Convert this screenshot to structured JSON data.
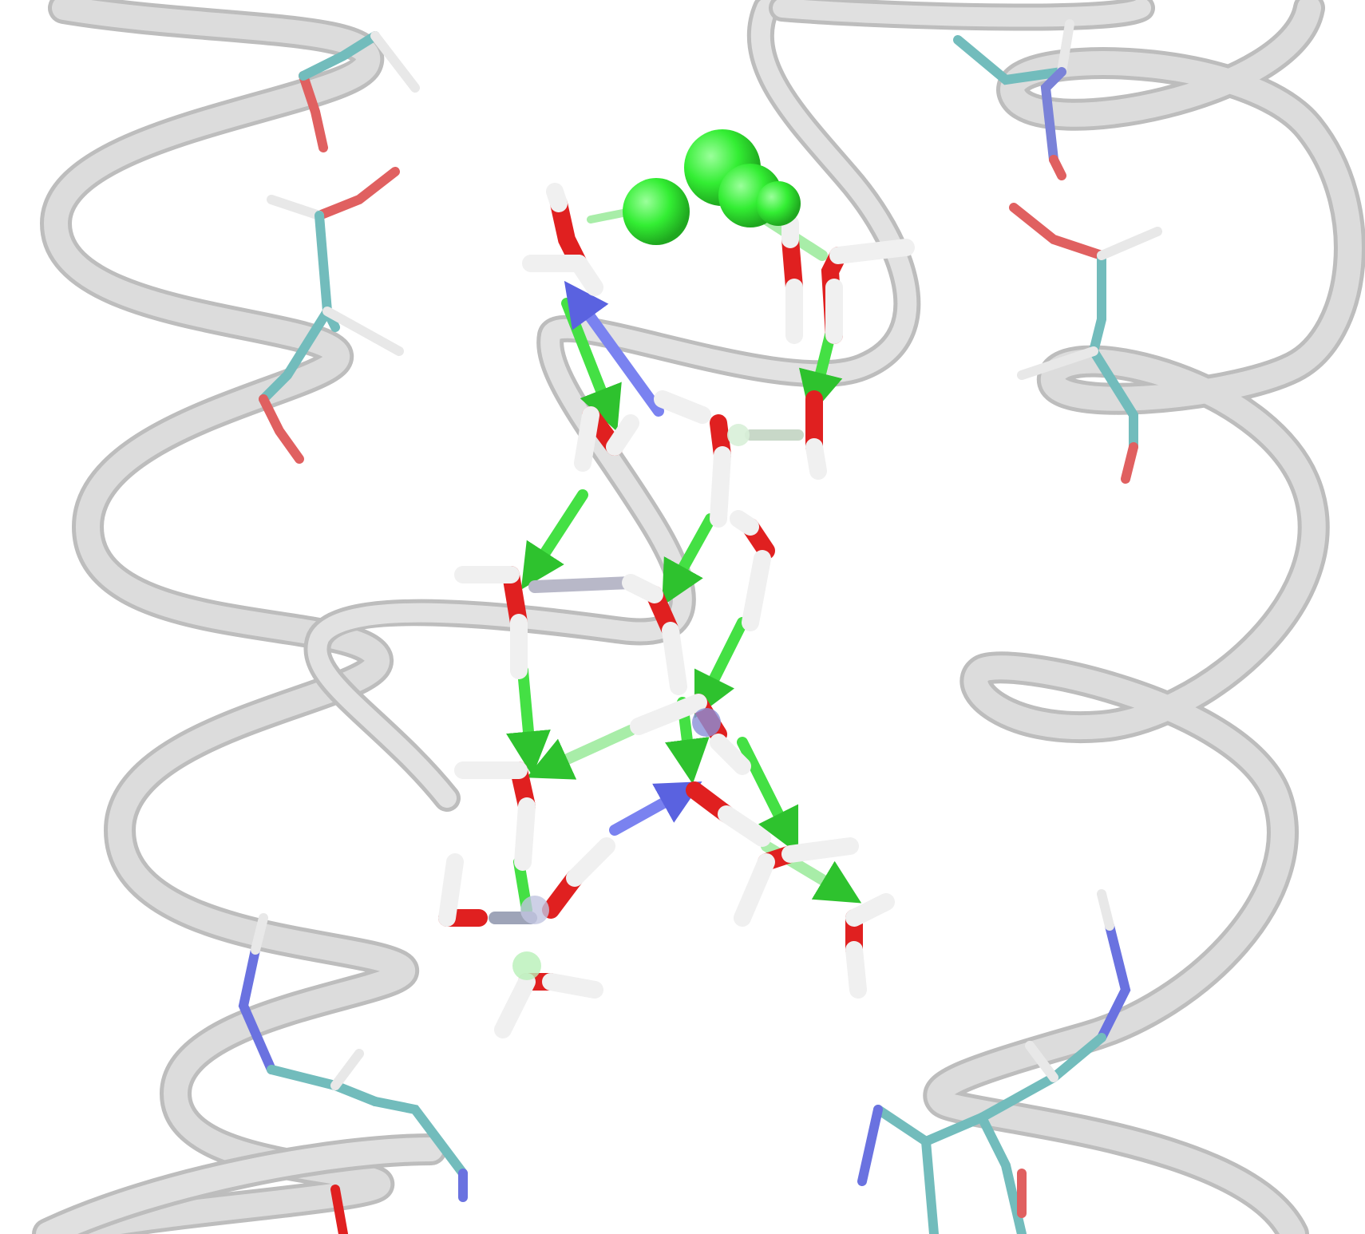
{
  "scene": {
    "description_text": "",
    "colors": {
      "background": "#ffffff",
      "ribbon": "#d9d9d9",
      "ribbon_edge": "#bdbdbd",
      "carbon": "#72bcbc",
      "oxygen": "#e02020",
      "hydrogen": "#f4f4f4",
      "nitrogen": "#6a72e0",
      "bond_arrow": "#44e044",
      "bond_arrow_light": "#a8eda8",
      "bond_arrow_blue": "#7a82f0",
      "sphere": "#33ee33"
    },
    "icons": [
      "protein-ribbon",
      "water-molecule",
      "hydrogen-bond-arrow",
      "ion-sphere"
    ]
  }
}
